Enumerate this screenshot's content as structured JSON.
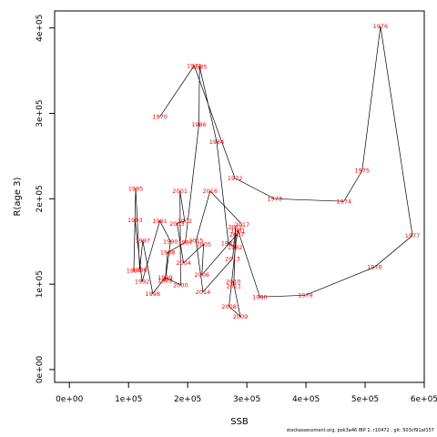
{
  "chart_data": {
    "type": "line",
    "title": "",
    "xlabel": "SSB",
    "ylabel": "R(age 3)",
    "xlim": [
      -25000,
      600000
    ],
    "ylim": [
      -15000,
      420000
    ],
    "xticks": [
      0,
      100000,
      200000,
      300000,
      400000,
      500000,
      600000
    ],
    "xtick_labels": [
      "0e+00",
      "1e+05",
      "2e+05",
      "3e+05",
      "4e+05",
      "5e+05",
      "6e+05"
    ],
    "yticks": [
      0,
      100000,
      200000,
      300000,
      400000
    ],
    "ytick_labels": [
      "0e+00",
      "1e+05",
      "2e+05",
      "3e+05",
      "4e+05"
    ],
    "grid": false,
    "series": [
      {
        "points": [
          {
            "year": "1970",
            "x": 153000,
            "y": 296000
          },
          {
            "year": "1971",
            "x": 211000,
            "y": 356000
          },
          {
            "year": "1972",
            "x": 280000,
            "y": 224000
          },
          {
            "year": "1973",
            "x": 347000,
            "y": 200000
          },
          {
            "year": "1974",
            "x": 464000,
            "y": 197000
          },
          {
            "year": "1975",
            "x": 495000,
            "y": 233000
          },
          {
            "year": "1976",
            "x": 526000,
            "y": 402000
          },
          {
            "year": "1977",
            "x": 580000,
            "y": 157000
          },
          {
            "year": "1978",
            "x": 516000,
            "y": 120000
          },
          {
            "year": "1979",
            "x": 399000,
            "y": 87000
          },
          {
            "year": "1980",
            "x": 322000,
            "y": 85000
          },
          {
            "year": "1981",
            "x": 285000,
            "y": 163000
          },
          {
            "year": "1982",
            "x": 280000,
            "y": 143000
          },
          {
            "year": "1983",
            "x": 269000,
            "y": 148000
          },
          {
            "year": "1984",
            "x": 249000,
            "y": 267000
          },
          {
            "year": "1985",
            "x": 220000,
            "y": 355000
          },
          {
            "year": "1986",
            "x": 219000,
            "y": 287000
          },
          {
            "year": "1987",
            "x": 196000,
            "y": 149000
          },
          {
            "year": "1988",
            "x": 166000,
            "y": 137000
          },
          {
            "year": "1989",
            "x": 162000,
            "y": 104000
          },
          {
            "year": "1990",
            "x": 171000,
            "y": 150000
          },
          {
            "year": "1991",
            "x": 153000,
            "y": 174000
          },
          {
            "year": "1992",
            "x": 123000,
            "y": 103000
          },
          {
            "year": "1993",
            "x": 111000,
            "y": 175000
          },
          {
            "year": "1994",
            "x": 109000,
            "y": 116000
          },
          {
            "year": "1995",
            "x": 112000,
            "y": 212000
          },
          {
            "year": "1996",
            "x": 119000,
            "y": 117000
          },
          {
            "year": "1997",
            "x": 124000,
            "y": 151000
          },
          {
            "year": "1998",
            "x": 141000,
            "y": 89000
          },
          {
            "year": "1999",
            "x": 162000,
            "y": 108000
          },
          {
            "year": "2000",
            "x": 188000,
            "y": 99000
          },
          {
            "year": "2001",
            "x": 187000,
            "y": 209000
          },
          {
            "year": "2002",
            "x": 195000,
            "y": 174000
          },
          {
            "year": "2003",
            "x": 182000,
            "y": 171000
          },
          {
            "year": "2004",
            "x": 193000,
            "y": 125000
          },
          {
            "year": "2005",
            "x": 227000,
            "y": 147000
          },
          {
            "year": "2006",
            "x": 224000,
            "y": 111000
          },
          {
            "year": "2007",
            "x": 283000,
            "y": 158000
          },
          {
            "year": "2008",
            "x": 270000,
            "y": 74000
          },
          {
            "year": "2009",
            "x": 289000,
            "y": 62000
          },
          {
            "year": "2010",
            "x": 277000,
            "y": 103000
          },
          {
            "year": "2011",
            "x": 278000,
            "y": 98000
          },
          {
            "year": "2012",
            "x": 281000,
            "y": 167000
          },
          {
            "year": "2013",
            "x": 276000,
            "y": 130000
          },
          {
            "year": "2014",
            "x": 226000,
            "y": 91000
          },
          {
            "year": "2015",
            "x": 214000,
            "y": 151000
          },
          {
            "year": "2016",
            "x": 238000,
            "y": 209000
          },
          {
            "year": "2017",
            "x": 292000,
            "y": 170000
          }
        ]
      }
    ]
  },
  "footer_text": "stockassessment.org,  pok3a46  IBP 1,  r10472 ,  git:  503cf91af157"
}
